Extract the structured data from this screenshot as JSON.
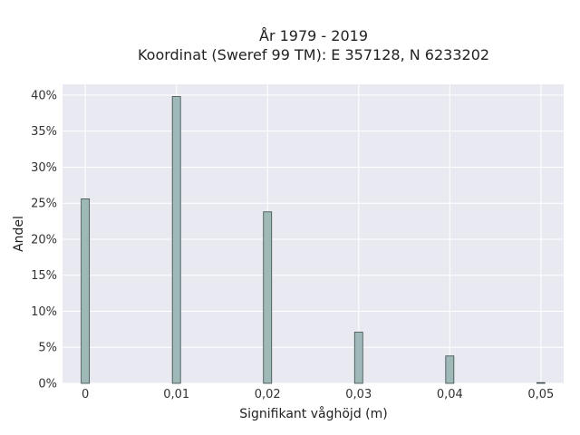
{
  "chart_data": {
    "type": "bar",
    "title": "År 1979 - 2019",
    "subtitle": "Koordinat (Sweref 99 TM): E 357128, N 6233202",
    "xlabel": "Signifikant våghöjd (m)",
    "ylabel": "Andel",
    "x": [
      0,
      0.01,
      0.02,
      0.03,
      0.04,
      0.05
    ],
    "values": [
      25.6,
      39.8,
      23.8,
      7.1,
      3.8,
      0.1
    ],
    "xticks": [
      "0",
      "0,01",
      "0,02",
      "0,03",
      "0,04",
      "0,05"
    ],
    "yticks": [
      "0%",
      "5%",
      "10%",
      "15%",
      "20%",
      "25%",
      "30%",
      "35%",
      "40%"
    ],
    "xlim": [
      -0.0025,
      0.0525
    ],
    "ylim": [
      0,
      41.5
    ],
    "grid": true,
    "colors": {
      "background": "#e9e9f1",
      "bar_fill": "#9fb8b8",
      "bar_edge": "#3a4a4a",
      "grid": "#ffffff"
    }
  }
}
